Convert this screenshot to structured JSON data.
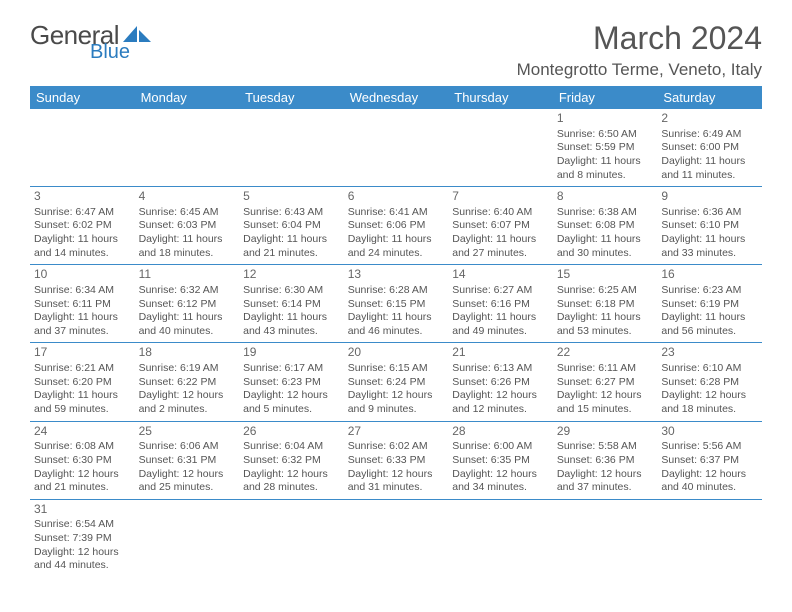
{
  "logo": {
    "textA": "General",
    "textB": "Blue"
  },
  "title": "March 2024",
  "subtitle": "Montegrotto Terme, Veneto, Italy",
  "colors": {
    "headerBg": "#3b8bc9",
    "headerText": "#ffffff",
    "bodyText": "#555555",
    "border": "#3b8bc9"
  },
  "dayHeaders": [
    "Sunday",
    "Monday",
    "Tuesday",
    "Wednesday",
    "Thursday",
    "Friday",
    "Saturday"
  ],
  "firstDayOffset": 5,
  "days": [
    {
      "n": 1,
      "sr": "6:50 AM",
      "ss": "5:59 PM",
      "dl": "11 hours and 8 minutes."
    },
    {
      "n": 2,
      "sr": "6:49 AM",
      "ss": "6:00 PM",
      "dl": "11 hours and 11 minutes."
    },
    {
      "n": 3,
      "sr": "6:47 AM",
      "ss": "6:02 PM",
      "dl": "11 hours and 14 minutes."
    },
    {
      "n": 4,
      "sr": "6:45 AM",
      "ss": "6:03 PM",
      "dl": "11 hours and 18 minutes."
    },
    {
      "n": 5,
      "sr": "6:43 AM",
      "ss": "6:04 PM",
      "dl": "11 hours and 21 minutes."
    },
    {
      "n": 6,
      "sr": "6:41 AM",
      "ss": "6:06 PM",
      "dl": "11 hours and 24 minutes."
    },
    {
      "n": 7,
      "sr": "6:40 AM",
      "ss": "6:07 PM",
      "dl": "11 hours and 27 minutes."
    },
    {
      "n": 8,
      "sr": "6:38 AM",
      "ss": "6:08 PM",
      "dl": "11 hours and 30 minutes."
    },
    {
      "n": 9,
      "sr": "6:36 AM",
      "ss": "6:10 PM",
      "dl": "11 hours and 33 minutes."
    },
    {
      "n": 10,
      "sr": "6:34 AM",
      "ss": "6:11 PM",
      "dl": "11 hours and 37 minutes."
    },
    {
      "n": 11,
      "sr": "6:32 AM",
      "ss": "6:12 PM",
      "dl": "11 hours and 40 minutes."
    },
    {
      "n": 12,
      "sr": "6:30 AM",
      "ss": "6:14 PM",
      "dl": "11 hours and 43 minutes."
    },
    {
      "n": 13,
      "sr": "6:28 AM",
      "ss": "6:15 PM",
      "dl": "11 hours and 46 minutes."
    },
    {
      "n": 14,
      "sr": "6:27 AM",
      "ss": "6:16 PM",
      "dl": "11 hours and 49 minutes."
    },
    {
      "n": 15,
      "sr": "6:25 AM",
      "ss": "6:18 PM",
      "dl": "11 hours and 53 minutes."
    },
    {
      "n": 16,
      "sr": "6:23 AM",
      "ss": "6:19 PM",
      "dl": "11 hours and 56 minutes."
    },
    {
      "n": 17,
      "sr": "6:21 AM",
      "ss": "6:20 PM",
      "dl": "11 hours and 59 minutes."
    },
    {
      "n": 18,
      "sr": "6:19 AM",
      "ss": "6:22 PM",
      "dl": "12 hours and 2 minutes."
    },
    {
      "n": 19,
      "sr": "6:17 AM",
      "ss": "6:23 PM",
      "dl": "12 hours and 5 minutes."
    },
    {
      "n": 20,
      "sr": "6:15 AM",
      "ss": "6:24 PM",
      "dl": "12 hours and 9 minutes."
    },
    {
      "n": 21,
      "sr": "6:13 AM",
      "ss": "6:26 PM",
      "dl": "12 hours and 12 minutes."
    },
    {
      "n": 22,
      "sr": "6:11 AM",
      "ss": "6:27 PM",
      "dl": "12 hours and 15 minutes."
    },
    {
      "n": 23,
      "sr": "6:10 AM",
      "ss": "6:28 PM",
      "dl": "12 hours and 18 minutes."
    },
    {
      "n": 24,
      "sr": "6:08 AM",
      "ss": "6:30 PM",
      "dl": "12 hours and 21 minutes."
    },
    {
      "n": 25,
      "sr": "6:06 AM",
      "ss": "6:31 PM",
      "dl": "12 hours and 25 minutes."
    },
    {
      "n": 26,
      "sr": "6:04 AM",
      "ss": "6:32 PM",
      "dl": "12 hours and 28 minutes."
    },
    {
      "n": 27,
      "sr": "6:02 AM",
      "ss": "6:33 PM",
      "dl": "12 hours and 31 minutes."
    },
    {
      "n": 28,
      "sr": "6:00 AM",
      "ss": "6:35 PM",
      "dl": "12 hours and 34 minutes."
    },
    {
      "n": 29,
      "sr": "5:58 AM",
      "ss": "6:36 PM",
      "dl": "12 hours and 37 minutes."
    },
    {
      "n": 30,
      "sr": "5:56 AM",
      "ss": "6:37 PM",
      "dl": "12 hours and 40 minutes."
    },
    {
      "n": 31,
      "sr": "6:54 AM",
      "ss": "7:39 PM",
      "dl": "12 hours and 44 minutes."
    }
  ],
  "labels": {
    "sunrise": "Sunrise:",
    "sunset": "Sunset:",
    "daylight": "Daylight:"
  }
}
